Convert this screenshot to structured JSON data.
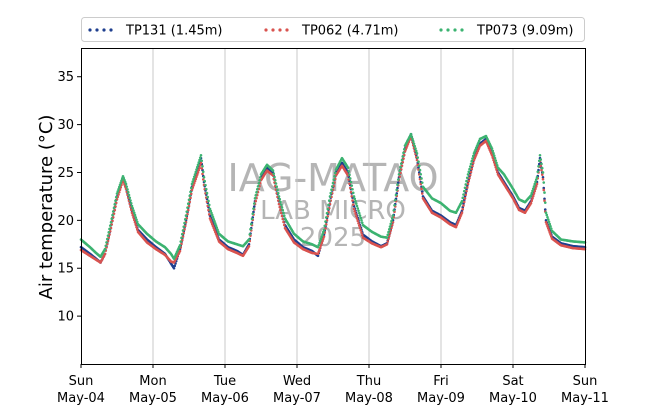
{
  "chart_data": {
    "type": "scatter",
    "title": "",
    "ylabel": "Air temperature (°C)",
    "xlabel": "",
    "ylim": [
      5,
      38
    ],
    "yticks": [
      10,
      15,
      20,
      25,
      30,
      35
    ],
    "xlim": [
      "2025-05-04T00:00",
      "2025-05-11T00:00"
    ],
    "xticks": [
      {
        "day": "Sun",
        "date": "May-04"
      },
      {
        "day": "Mon",
        "date": "May-05"
      },
      {
        "day": "Tue",
        "date": "May-06"
      },
      {
        "day": "Wed",
        "date": "May-07"
      },
      {
        "day": "Thu",
        "date": "May-08"
      },
      {
        "day": "Fri",
        "date": "May-09"
      },
      {
        "day": "Sat",
        "date": "May-10"
      },
      {
        "day": "Sun",
        "date": "May-11"
      }
    ],
    "grid": "vertical-major",
    "legend_position": "top",
    "watermark": [
      "IAG-MATAO",
      "LAB MICRO",
      "2025"
    ],
    "series": [
      {
        "name": "TP131 (1.45m)",
        "color": "#1f3f8f",
        "points": [
          [
            "2025-05-04T00:00",
            17.2
          ],
          [
            "2025-05-04T03:00",
            16.5
          ],
          [
            "2025-05-04T05:00",
            16.0
          ],
          [
            "2025-05-04T06:30",
            15.6
          ],
          [
            "2025-05-04T08:00",
            16.5
          ],
          [
            "2025-05-04T10:00",
            19.5
          ],
          [
            "2025-05-04T12:00",
            22.5
          ],
          [
            "2025-05-04T14:00",
            24.5
          ],
          [
            "2025-05-04T15:00",
            23.5
          ],
          [
            "2025-05-04T17:00",
            21.0
          ],
          [
            "2025-05-04T19:00",
            19.0
          ],
          [
            "2025-05-04T22:00",
            18.0
          ],
          [
            "2025-05-05T01:00",
            17.2
          ],
          [
            "2025-05-05T04:00",
            16.5
          ],
          [
            "2025-05-05T06:00",
            15.5
          ],
          [
            "2025-05-05T07:00",
            15.0
          ],
          [
            "2025-05-05T09:00",
            17.0
          ],
          [
            "2025-05-05T11:00",
            20.0
          ],
          [
            "2025-05-05T13:00",
            23.5
          ],
          [
            "2025-05-05T15:00",
            25.5
          ],
          [
            "2025-05-05T16:00",
            26.5
          ],
          [
            "2025-05-05T17:00",
            24.0
          ],
          [
            "2025-05-05T19:00",
            20.5
          ],
          [
            "2025-05-05T22:00",
            18.0
          ],
          [
            "2025-05-06T01:00",
            17.2
          ],
          [
            "2025-05-06T04:00",
            16.8
          ],
          [
            "2025-05-06T06:00",
            16.4
          ],
          [
            "2025-05-06T08:00",
            17.5
          ],
          [
            "2025-05-06T10:00",
            22.0
          ],
          [
            "2025-05-06T12:00",
            24.5
          ],
          [
            "2025-05-06T14:00",
            25.5
          ],
          [
            "2025-05-06T16:00",
            25.0
          ],
          [
            "2025-05-06T18:00",
            22.0
          ],
          [
            "2025-05-06T20:00",
            19.5
          ],
          [
            "2025-05-06T23:00",
            18.0
          ],
          [
            "2025-05-07T02:00",
            17.2
          ],
          [
            "2025-05-07T05:00",
            16.8
          ],
          [
            "2025-05-07T07:00",
            16.3
          ],
          [
            "2025-05-07T09:00",
            18.5
          ],
          [
            "2025-05-07T11:00",
            22.0
          ],
          [
            "2025-05-07T13:00",
            25.0
          ],
          [
            "2025-05-07T15:00",
            26.0
          ],
          [
            "2025-05-07T17:00",
            25.0
          ],
          [
            "2025-05-07T19:00",
            21.5
          ],
          [
            "2025-05-07T22:00",
            18.5
          ],
          [
            "2025-05-08T01:00",
            17.8
          ],
          [
            "2025-05-08T04:00",
            17.3
          ],
          [
            "2025-05-08T06:00",
            17.6
          ],
          [
            "2025-05-08T08:00",
            20.0
          ],
          [
            "2025-05-08T10:00",
            24.5
          ],
          [
            "2025-05-08T12:00",
            27.5
          ],
          [
            "2025-05-08T14:00",
            29.0
          ],
          [
            "2025-05-08T16:00",
            26.5
          ],
          [
            "2025-05-08T18:00",
            22.5
          ],
          [
            "2025-05-08T21:00",
            21.0
          ],
          [
            "2025-05-09T00:00",
            20.5
          ],
          [
            "2025-05-09T03:00",
            19.8
          ],
          [
            "2025-05-09T05:00",
            19.5
          ],
          [
            "2025-05-09T07:00",
            21.0
          ],
          [
            "2025-05-09T09:00",
            24.0
          ],
          [
            "2025-05-09T11:00",
            26.5
          ],
          [
            "2025-05-09T13:00",
            28.0
          ],
          [
            "2025-05-09T15:00",
            28.5
          ],
          [
            "2025-05-09T17:00",
            27.0
          ],
          [
            "2025-05-09T19:00",
            25.0
          ],
          [
            "2025-05-09T21:00",
            24.0
          ],
          [
            "2025-05-10T00:00",
            22.5
          ],
          [
            "2025-05-10T02:00",
            21.3
          ],
          [
            "2025-05-10T04:00",
            21.0
          ],
          [
            "2025-05-10T06:00",
            22.0
          ],
          [
            "2025-05-10T08:00",
            24.0
          ],
          [
            "2025-05-10T09:00",
            26.5
          ],
          [
            "2025-05-10T10:00",
            24.5
          ],
          [
            "2025-05-10T11:00",
            20.0
          ],
          [
            "2025-05-10T13:00",
            18.3
          ],
          [
            "2025-05-10T16:00",
            17.6
          ],
          [
            "2025-05-10T20:00",
            17.3
          ],
          [
            "2025-05-11T00:00",
            17.2
          ]
        ]
      },
      {
        "name": "TP062 (4.71m)",
        "color": "#d9534f",
        "points": [
          [
            "2025-05-04T00:00",
            16.9
          ],
          [
            "2025-05-04T03:00",
            16.3
          ],
          [
            "2025-05-04T05:00",
            15.9
          ],
          [
            "2025-05-04T06:30",
            15.6
          ],
          [
            "2025-05-04T08:00",
            16.5
          ],
          [
            "2025-05-04T10:00",
            19.2
          ],
          [
            "2025-05-04T12:00",
            22.2
          ],
          [
            "2025-05-04T14:00",
            24.2
          ],
          [
            "2025-05-04T15:00",
            23.3
          ],
          [
            "2025-05-04T17:00",
            20.8
          ],
          [
            "2025-05-04T19:00",
            18.8
          ],
          [
            "2025-05-04T22:00",
            17.7
          ],
          [
            "2025-05-05T01:00",
            17.0
          ],
          [
            "2025-05-05T04:00",
            16.4
          ],
          [
            "2025-05-05T06:00",
            15.7
          ],
          [
            "2025-05-05T07:00",
            15.6
          ],
          [
            "2025-05-05T09:00",
            16.8
          ],
          [
            "2025-05-05T11:00",
            19.8
          ],
          [
            "2025-05-05T13:00",
            23.2
          ],
          [
            "2025-05-05T15:00",
            25.0
          ],
          [
            "2025-05-05T16:00",
            26.0
          ],
          [
            "2025-05-05T17:00",
            23.7
          ],
          [
            "2025-05-05T19:00",
            20.2
          ],
          [
            "2025-05-05T22:00",
            17.8
          ],
          [
            "2025-05-06T01:00",
            17.0
          ],
          [
            "2025-05-06T04:00",
            16.6
          ],
          [
            "2025-05-06T06:00",
            16.3
          ],
          [
            "2025-05-06T08:00",
            17.3
          ],
          [
            "2025-05-06T10:00",
            21.7
          ],
          [
            "2025-05-06T12:00",
            24.2
          ],
          [
            "2025-05-06T14:00",
            25.2
          ],
          [
            "2025-05-06T16:00",
            24.7
          ],
          [
            "2025-05-06T18:00",
            21.7
          ],
          [
            "2025-05-06T20:00",
            19.2
          ],
          [
            "2025-05-06T23:00",
            17.7
          ],
          [
            "2025-05-07T02:00",
            17.0
          ],
          [
            "2025-05-07T05:00",
            16.6
          ],
          [
            "2025-05-07T07:00",
            16.5
          ],
          [
            "2025-05-07T09:00",
            18.3
          ],
          [
            "2025-05-07T11:00",
            21.7
          ],
          [
            "2025-05-07T13:00",
            24.7
          ],
          [
            "2025-05-07T15:00",
            25.7
          ],
          [
            "2025-05-07T17:00",
            24.7
          ],
          [
            "2025-05-07T19:00",
            21.2
          ],
          [
            "2025-05-07T22:00",
            18.2
          ],
          [
            "2025-05-08T01:00",
            17.6
          ],
          [
            "2025-05-08T04:00",
            17.2
          ],
          [
            "2025-05-08T06:00",
            17.5
          ],
          [
            "2025-05-08T08:00",
            19.8
          ],
          [
            "2025-05-08T10:00",
            24.2
          ],
          [
            "2025-05-08T12:00",
            27.2
          ],
          [
            "2025-05-08T14:00",
            28.8
          ],
          [
            "2025-05-08T16:00",
            26.3
          ],
          [
            "2025-05-08T18:00",
            22.3
          ],
          [
            "2025-05-08T21:00",
            20.8
          ],
          [
            "2025-05-09T00:00",
            20.3
          ],
          [
            "2025-05-09T03:00",
            19.6
          ],
          [
            "2025-05-09T05:00",
            19.3
          ],
          [
            "2025-05-09T07:00",
            20.8
          ],
          [
            "2025-05-09T09:00",
            23.8
          ],
          [
            "2025-05-09T11:00",
            26.3
          ],
          [
            "2025-05-09T13:00",
            27.8
          ],
          [
            "2025-05-09T15:00",
            28.3
          ],
          [
            "2025-05-09T17:00",
            26.8
          ],
          [
            "2025-05-09T19:00",
            24.8
          ],
          [
            "2025-05-09T21:00",
            23.8
          ],
          [
            "2025-05-10T00:00",
            22.3
          ],
          [
            "2025-05-10T02:00",
            21.1
          ],
          [
            "2025-05-10T04:00",
            20.8
          ],
          [
            "2025-05-10T06:00",
            21.8
          ],
          [
            "2025-05-10T08:00",
            23.8
          ],
          [
            "2025-05-10T09:00",
            26.2
          ],
          [
            "2025-05-10T10:00",
            24.3
          ],
          [
            "2025-05-10T11:00",
            19.8
          ],
          [
            "2025-05-10T13:00",
            18.1
          ],
          [
            "2025-05-10T16:00",
            17.4
          ],
          [
            "2025-05-10T20:00",
            17.1
          ],
          [
            "2025-05-11T00:00",
            17.0
          ]
        ]
      },
      {
        "name": "TP073 (9.09m)",
        "color": "#3cb371",
        "points": [
          [
            "2025-05-04T00:00",
            18.0
          ],
          [
            "2025-05-04T03:00",
            17.2
          ],
          [
            "2025-05-04T05:00",
            16.6
          ],
          [
            "2025-05-04T06:30",
            16.2
          ],
          [
            "2025-05-04T08:00",
            17.0
          ],
          [
            "2025-05-04T10:00",
            19.8
          ],
          [
            "2025-05-04T12:00",
            22.8
          ],
          [
            "2025-05-04T14:00",
            24.6
          ],
          [
            "2025-05-04T15:00",
            23.8
          ],
          [
            "2025-05-04T17:00",
            21.5
          ],
          [
            "2025-05-04T19:00",
            19.6
          ],
          [
            "2025-05-04T22:00",
            18.6
          ],
          [
            "2025-05-05T01:00",
            17.8
          ],
          [
            "2025-05-05T04:00",
            17.2
          ],
          [
            "2025-05-05T06:00",
            16.5
          ],
          [
            "2025-05-05T07:00",
            16.0
          ],
          [
            "2025-05-05T09:00",
            17.4
          ],
          [
            "2025-05-05T11:00",
            20.5
          ],
          [
            "2025-05-05T13:00",
            23.8
          ],
          [
            "2025-05-05T15:00",
            25.8
          ],
          [
            "2025-05-05T16:00",
            26.8
          ],
          [
            "2025-05-05T17:00",
            24.5
          ],
          [
            "2025-05-05T19:00",
            21.2
          ],
          [
            "2025-05-05T22:00",
            18.6
          ],
          [
            "2025-05-06T01:00",
            17.8
          ],
          [
            "2025-05-06T04:00",
            17.5
          ],
          [
            "2025-05-06T06:00",
            17.3
          ],
          [
            "2025-05-06T08:00",
            18.0
          ],
          [
            "2025-05-06T10:00",
            22.3
          ],
          [
            "2025-05-06T12:00",
            24.8
          ],
          [
            "2025-05-06T14:00",
            25.8
          ],
          [
            "2025-05-06T16:00",
            25.2
          ],
          [
            "2025-05-06T18:00",
            22.5
          ],
          [
            "2025-05-06T20:00",
            20.2
          ],
          [
            "2025-05-06T23:00",
            18.6
          ],
          [
            "2025-05-07T02:00",
            17.8
          ],
          [
            "2025-05-07T05:00",
            17.5
          ],
          [
            "2025-05-07T07:00",
            17.2
          ],
          [
            "2025-05-07T09:00",
            19.0
          ],
          [
            "2025-05-07T11:00",
            22.5
          ],
          [
            "2025-05-07T13:00",
            25.3
          ],
          [
            "2025-05-07T15:00",
            26.5
          ],
          [
            "2025-05-07T17:00",
            25.5
          ],
          [
            "2025-05-07T19:00",
            22.5
          ],
          [
            "2025-05-07T22:00",
            19.5
          ],
          [
            "2025-05-08T01:00",
            18.8
          ],
          [
            "2025-05-08T04:00",
            18.3
          ],
          [
            "2025-05-08T06:00",
            18.2
          ],
          [
            "2025-05-08T08:00",
            20.5
          ],
          [
            "2025-05-08T10:00",
            24.8
          ],
          [
            "2025-05-08T12:00",
            27.8
          ],
          [
            "2025-05-08T14:00",
            29.0
          ],
          [
            "2025-05-08T16:00",
            27.0
          ],
          [
            "2025-05-08T18:00",
            23.5
          ],
          [
            "2025-05-08T21:00",
            22.3
          ],
          [
            "2025-05-09T00:00",
            21.8
          ],
          [
            "2025-05-09T03:00",
            21.0
          ],
          [
            "2025-05-09T05:00",
            20.8
          ],
          [
            "2025-05-09T07:00",
            22.0
          ],
          [
            "2025-05-09T09:00",
            24.8
          ],
          [
            "2025-05-09T11:00",
            27.0
          ],
          [
            "2025-05-09T13:00",
            28.5
          ],
          [
            "2025-05-09T15:00",
            28.8
          ],
          [
            "2025-05-09T17:00",
            27.5
          ],
          [
            "2025-05-09T19:00",
            25.5
          ],
          [
            "2025-05-09T21:00",
            24.8
          ],
          [
            "2025-05-10T00:00",
            23.3
          ],
          [
            "2025-05-10T02:00",
            22.2
          ],
          [
            "2025-05-10T04:00",
            21.9
          ],
          [
            "2025-05-10T06:00",
            22.6
          ],
          [
            "2025-05-10T08:00",
            24.5
          ],
          [
            "2025-05-10T09:00",
            26.8
          ],
          [
            "2025-05-10T10:00",
            25.0
          ],
          [
            "2025-05-10T11:00",
            20.8
          ],
          [
            "2025-05-10T13:00",
            18.9
          ],
          [
            "2025-05-10T16:00",
            18.0
          ],
          [
            "2025-05-10T20:00",
            17.8
          ],
          [
            "2025-05-11T00:00",
            17.7
          ]
        ]
      }
    ]
  }
}
